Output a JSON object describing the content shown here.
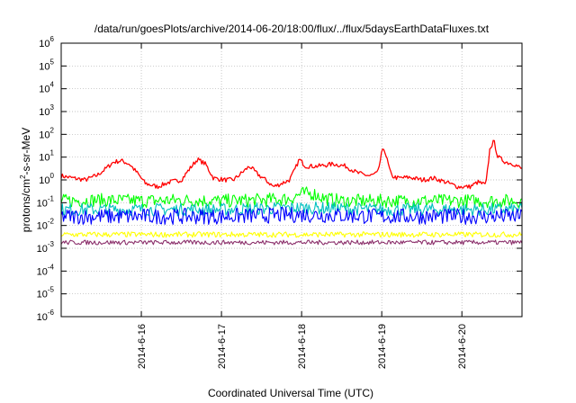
{
  "chart_data": {
    "type": "line",
    "title": "/data/run/goesPlots/archive/2014-06-20/18:00/flux/../flux/5daysEarthDataFluxes.txt",
    "xlabel": "Coordinated Universal Time (UTC)",
    "ylabel": "protons/cm²-s-sr-MeV",
    "ylabel_parts": [
      "protons/cm",
      "2",
      "-s-sr-MeV"
    ],
    "yscale": "log",
    "ylim": [
      1e-06,
      1000000.0
    ],
    "xlim": [
      0,
      5.75
    ],
    "x_units": "days since 2014-06-15 00:00 UTC",
    "grid": true,
    "legend": "none",
    "y_ticks": [
      {
        "base": "10",
        "exp": "-6",
        "value": 1e-06
      },
      {
        "base": "10",
        "exp": "-5",
        "value": 1e-05
      },
      {
        "base": "10",
        "exp": "-4",
        "value": 0.0001
      },
      {
        "base": "10",
        "exp": "-3",
        "value": 0.001
      },
      {
        "base": "10",
        "exp": "-2",
        "value": 0.01
      },
      {
        "base": "10",
        "exp": "-1",
        "value": 0.1
      },
      {
        "base": "10",
        "exp": "0",
        "value": 1
      },
      {
        "base": "10",
        "exp": "1",
        "value": 10
      },
      {
        "base": "10",
        "exp": "2",
        "value": 100
      },
      {
        "base": "10",
        "exp": "3",
        "value": 1000
      },
      {
        "base": "10",
        "exp": "4",
        "value": 10000
      },
      {
        "base": "10",
        "exp": "5",
        "value": 100000
      },
      {
        "base": "10",
        "exp": "6",
        "value": 1000000
      }
    ],
    "x_ticks": [
      {
        "label": "2014-6-16",
        "value": 1
      },
      {
        "label": "2014-6-17",
        "value": 2
      },
      {
        "label": "2014-6-18",
        "value": 3
      },
      {
        "label": "2014-6-19",
        "value": 4
      },
      {
        "label": "2014-6-20",
        "value": 5
      }
    ],
    "series": [
      {
        "color": "#ff0000",
        "values": [
          [
            0.0,
            1.5
          ],
          [
            0.15,
            1.2
          ],
          [
            0.3,
            1.0
          ],
          [
            0.45,
            1.6
          ],
          [
            0.55,
            3.0
          ],
          [
            0.65,
            6.0
          ],
          [
            0.75,
            7.0
          ],
          [
            0.85,
            5.0
          ],
          [
            0.95,
            2.0
          ],
          [
            1.05,
            0.7
          ],
          [
            1.2,
            0.5
          ],
          [
            1.35,
            0.8
          ],
          [
            1.5,
            1.0
          ],
          [
            1.6,
            3.0
          ],
          [
            1.7,
            8.0
          ],
          [
            1.8,
            5.0
          ],
          [
            1.9,
            1.2
          ],
          [
            2.05,
            1.0
          ],
          [
            2.15,
            1.0
          ],
          [
            2.25,
            2.0
          ],
          [
            2.35,
            4.0
          ],
          [
            2.45,
            1.8
          ],
          [
            2.55,
            1.0
          ],
          [
            2.65,
            0.5
          ],
          [
            2.75,
            0.7
          ],
          [
            2.85,
            1.0
          ],
          [
            2.92,
            3.0
          ],
          [
            2.97,
            8.0
          ],
          [
            3.05,
            4.0
          ],
          [
            3.2,
            4.0
          ],
          [
            3.4,
            5.0
          ],
          [
            3.55,
            4.0
          ],
          [
            3.7,
            2.0
          ],
          [
            3.85,
            1.5
          ],
          [
            3.95,
            2.0
          ],
          [
            4.0,
            15.0
          ],
          [
            4.03,
            25.0
          ],
          [
            4.08,
            5.0
          ],
          [
            4.12,
            1.5
          ],
          [
            4.2,
            1.2
          ],
          [
            4.35,
            1.3
          ],
          [
            4.5,
            1.0
          ],
          [
            4.65,
            1.2
          ],
          [
            4.8,
            0.8
          ],
          [
            4.95,
            0.5
          ],
          [
            5.1,
            0.5
          ],
          [
            5.2,
            0.8
          ],
          [
            5.3,
            0.6
          ],
          [
            5.35,
            25.0
          ],
          [
            5.4,
            50.0
          ],
          [
            5.45,
            10.0
          ],
          [
            5.55,
            6.0
          ],
          [
            5.65,
            5.0
          ],
          [
            5.75,
            3.0
          ]
        ]
      },
      {
        "color": "#00ff00",
        "values": [
          [
            0.0,
            0.12
          ],
          [
            0.5,
            0.13
          ],
          [
            1.0,
            0.12
          ],
          [
            1.5,
            0.13
          ],
          [
            2.0,
            0.12
          ],
          [
            2.5,
            0.13
          ],
          [
            2.85,
            0.15
          ],
          [
            3.0,
            0.25
          ],
          [
            3.15,
            0.25
          ],
          [
            3.3,
            0.15
          ],
          [
            3.5,
            0.12
          ],
          [
            4.0,
            0.12
          ],
          [
            4.5,
            0.12
          ],
          [
            5.0,
            0.12
          ],
          [
            5.5,
            0.12
          ],
          [
            5.75,
            0.12
          ]
        ]
      },
      {
        "color": "#00c0c0",
        "values": [
          [
            0.0,
            0.05
          ],
          [
            1.0,
            0.05
          ],
          [
            2.0,
            0.05
          ],
          [
            3.0,
            0.06
          ],
          [
            4.0,
            0.05
          ],
          [
            5.0,
            0.05
          ],
          [
            5.75,
            0.05
          ]
        ]
      },
      {
        "color": "#0000ff",
        "values": [
          [
            0.0,
            0.025
          ],
          [
            1.0,
            0.025
          ],
          [
            2.0,
            0.025
          ],
          [
            3.0,
            0.03
          ],
          [
            4.0,
            0.025
          ],
          [
            5.0,
            0.025
          ],
          [
            5.75,
            0.025
          ]
        ]
      },
      {
        "color": "#ffff00",
        "values": [
          [
            0.0,
            0.004
          ],
          [
            1.0,
            0.004
          ],
          [
            2.0,
            0.004
          ],
          [
            3.0,
            0.004
          ],
          [
            4.0,
            0.004
          ],
          [
            5.0,
            0.004
          ],
          [
            5.75,
            0.004
          ]
        ]
      },
      {
        "color": "#8b2f6b",
        "values": [
          [
            0.0,
            0.0018
          ],
          [
            1.0,
            0.0018
          ],
          [
            2.0,
            0.0018
          ],
          [
            3.0,
            0.0018
          ],
          [
            4.0,
            0.0018
          ],
          [
            5.0,
            0.0018
          ],
          [
            5.75,
            0.0018
          ]
        ]
      }
    ]
  }
}
